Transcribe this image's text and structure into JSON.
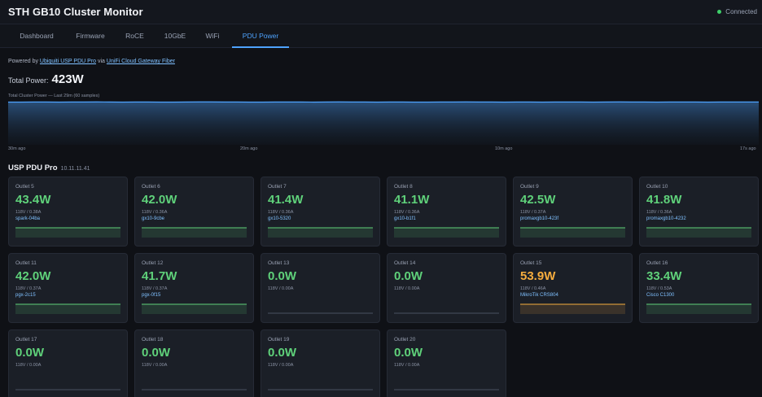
{
  "header": {
    "title": "STH GB10 Cluster Monitor",
    "status": "Connected",
    "status_color": "#3ecf6a"
  },
  "tabs": [
    {
      "label": "Dashboard",
      "active": false
    },
    {
      "label": "Firmware",
      "active": false
    },
    {
      "label": "RoCE",
      "active": false
    },
    {
      "label": "10GbE",
      "active": false
    },
    {
      "label": "WiFi",
      "active": false
    },
    {
      "label": "PDU Power",
      "active": true
    }
  ],
  "powered": {
    "prefix": "Powered by",
    "pdu_link": "Ubiquiti USP PDU Pro",
    "via": "via",
    "gateway_link": "UniFi Cloud Gateway Fiber"
  },
  "total": {
    "label": "Total Power:",
    "value": "423W"
  },
  "chart_data": {
    "type": "area",
    "title": "Total Cluster Power — Last 29m (60 samples)",
    "x_tick_labels": [
      "30m ago",
      "20m ago",
      "10m ago",
      "17s ago"
    ],
    "series": [
      {
        "values": [
          422,
          422,
          423,
          423,
          422,
          423,
          423,
          424,
          423,
          422,
          423,
          423,
          422,
          422,
          423,
          424,
          424,
          423,
          423,
          422,
          422,
          423,
          423,
          423,
          422,
          423,
          424,
          423,
          423,
          422,
          423,
          423,
          422,
          422,
          423,
          423,
          424,
          423,
          423,
          422,
          423,
          423,
          422,
          423,
          423,
          423,
          422,
          423,
          424,
          423,
          423,
          422,
          423,
          423,
          423,
          422,
          423,
          423,
          423,
          423
        ]
      }
    ],
    "ylim": [
      0,
      450
    ],
    "line_color": "#4ea3ff"
  },
  "section": {
    "name": "USP PDU Pro",
    "ip": "10.11.11.41"
  },
  "outlets": [
    {
      "name": "Outlet 5",
      "watts": "43.4W",
      "va": "118V / 0.38A",
      "device": "spark-04ba",
      "state": "on"
    },
    {
      "name": "Outlet 6",
      "watts": "42.0W",
      "va": "118V / 0.36A",
      "device": "gx10-9cbe",
      "state": "on"
    },
    {
      "name": "Outlet 7",
      "watts": "41.4W",
      "va": "118V / 0.36A",
      "device": "gx10-5320",
      "state": "on"
    },
    {
      "name": "Outlet 8",
      "watts": "41.1W",
      "va": "118V / 0.36A",
      "device": "gx10-b1f1",
      "state": "on"
    },
    {
      "name": "Outlet 9",
      "watts": "42.5W",
      "va": "118V / 0.37A",
      "device": "promaxgb10-423f",
      "state": "on"
    },
    {
      "name": "Outlet 10",
      "watts": "41.8W",
      "va": "118V / 0.36A",
      "device": "promaxgb10-4232",
      "state": "on"
    },
    {
      "name": "Outlet 11",
      "watts": "42.0W",
      "va": "118V / 0.37A",
      "device": "pgx-2c15",
      "state": "on"
    },
    {
      "name": "Outlet 12",
      "watts": "41.7W",
      "va": "118V / 0.37A",
      "device": "pgx-0f15",
      "state": "on"
    },
    {
      "name": "Outlet 13",
      "watts": "0.0W",
      "va": "118V / 0.00A",
      "device": "",
      "state": "off"
    },
    {
      "name": "Outlet 14",
      "watts": "0.0W",
      "va": "118V / 0.00A",
      "device": "",
      "state": "off"
    },
    {
      "name": "Outlet 15",
      "watts": "53.9W",
      "va": "118V / 0.46A",
      "device": "MikroTik CRS804",
      "state": "warn"
    },
    {
      "name": "Outlet 16",
      "watts": "33.4W",
      "va": "118V / 0.53A",
      "device": "Cisco C1300",
      "state": "on"
    },
    {
      "name": "Outlet 17",
      "watts": "0.0W",
      "va": "118V / 0.00A",
      "device": "",
      "state": "off"
    },
    {
      "name": "Outlet 18",
      "watts": "0.0W",
      "va": "118V / 0.00A",
      "device": "",
      "state": "off"
    },
    {
      "name": "Outlet 19",
      "watts": "0.0W",
      "va": "118V / 0.00A",
      "device": "",
      "state": "off"
    },
    {
      "name": "Outlet 20",
      "watts": "0.0W",
      "va": "118V / 0.00A",
      "device": "",
      "state": "off"
    }
  ]
}
